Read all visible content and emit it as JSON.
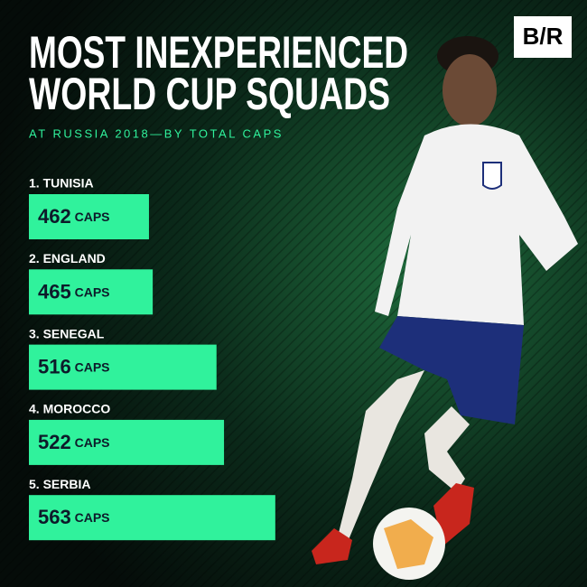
{
  "chart_data": {
    "type": "bar",
    "orientation": "horizontal",
    "logo": "B/R",
    "title": [
      "MOST INEXPERIENCED",
      "WORLD CUP SQUADS"
    ],
    "subtitle": "AT RUSSIA 2018—BY TOTAL CAPS",
    "categories": [
      "1. TUNISIA",
      "2. ENGLAND",
      "3. SENEGAL",
      "4. MOROCCO",
      "5. SERBIA"
    ],
    "values": [
      462,
      465,
      516,
      522,
      563
    ],
    "value_labels": [
      "462 CAPS",
      "465 CAPS",
      "516 CAPS",
      "522 CAPS",
      "563 CAPS"
    ],
    "color": "#30f29c",
    "xlim": [
      366,
      805
    ]
  }
}
